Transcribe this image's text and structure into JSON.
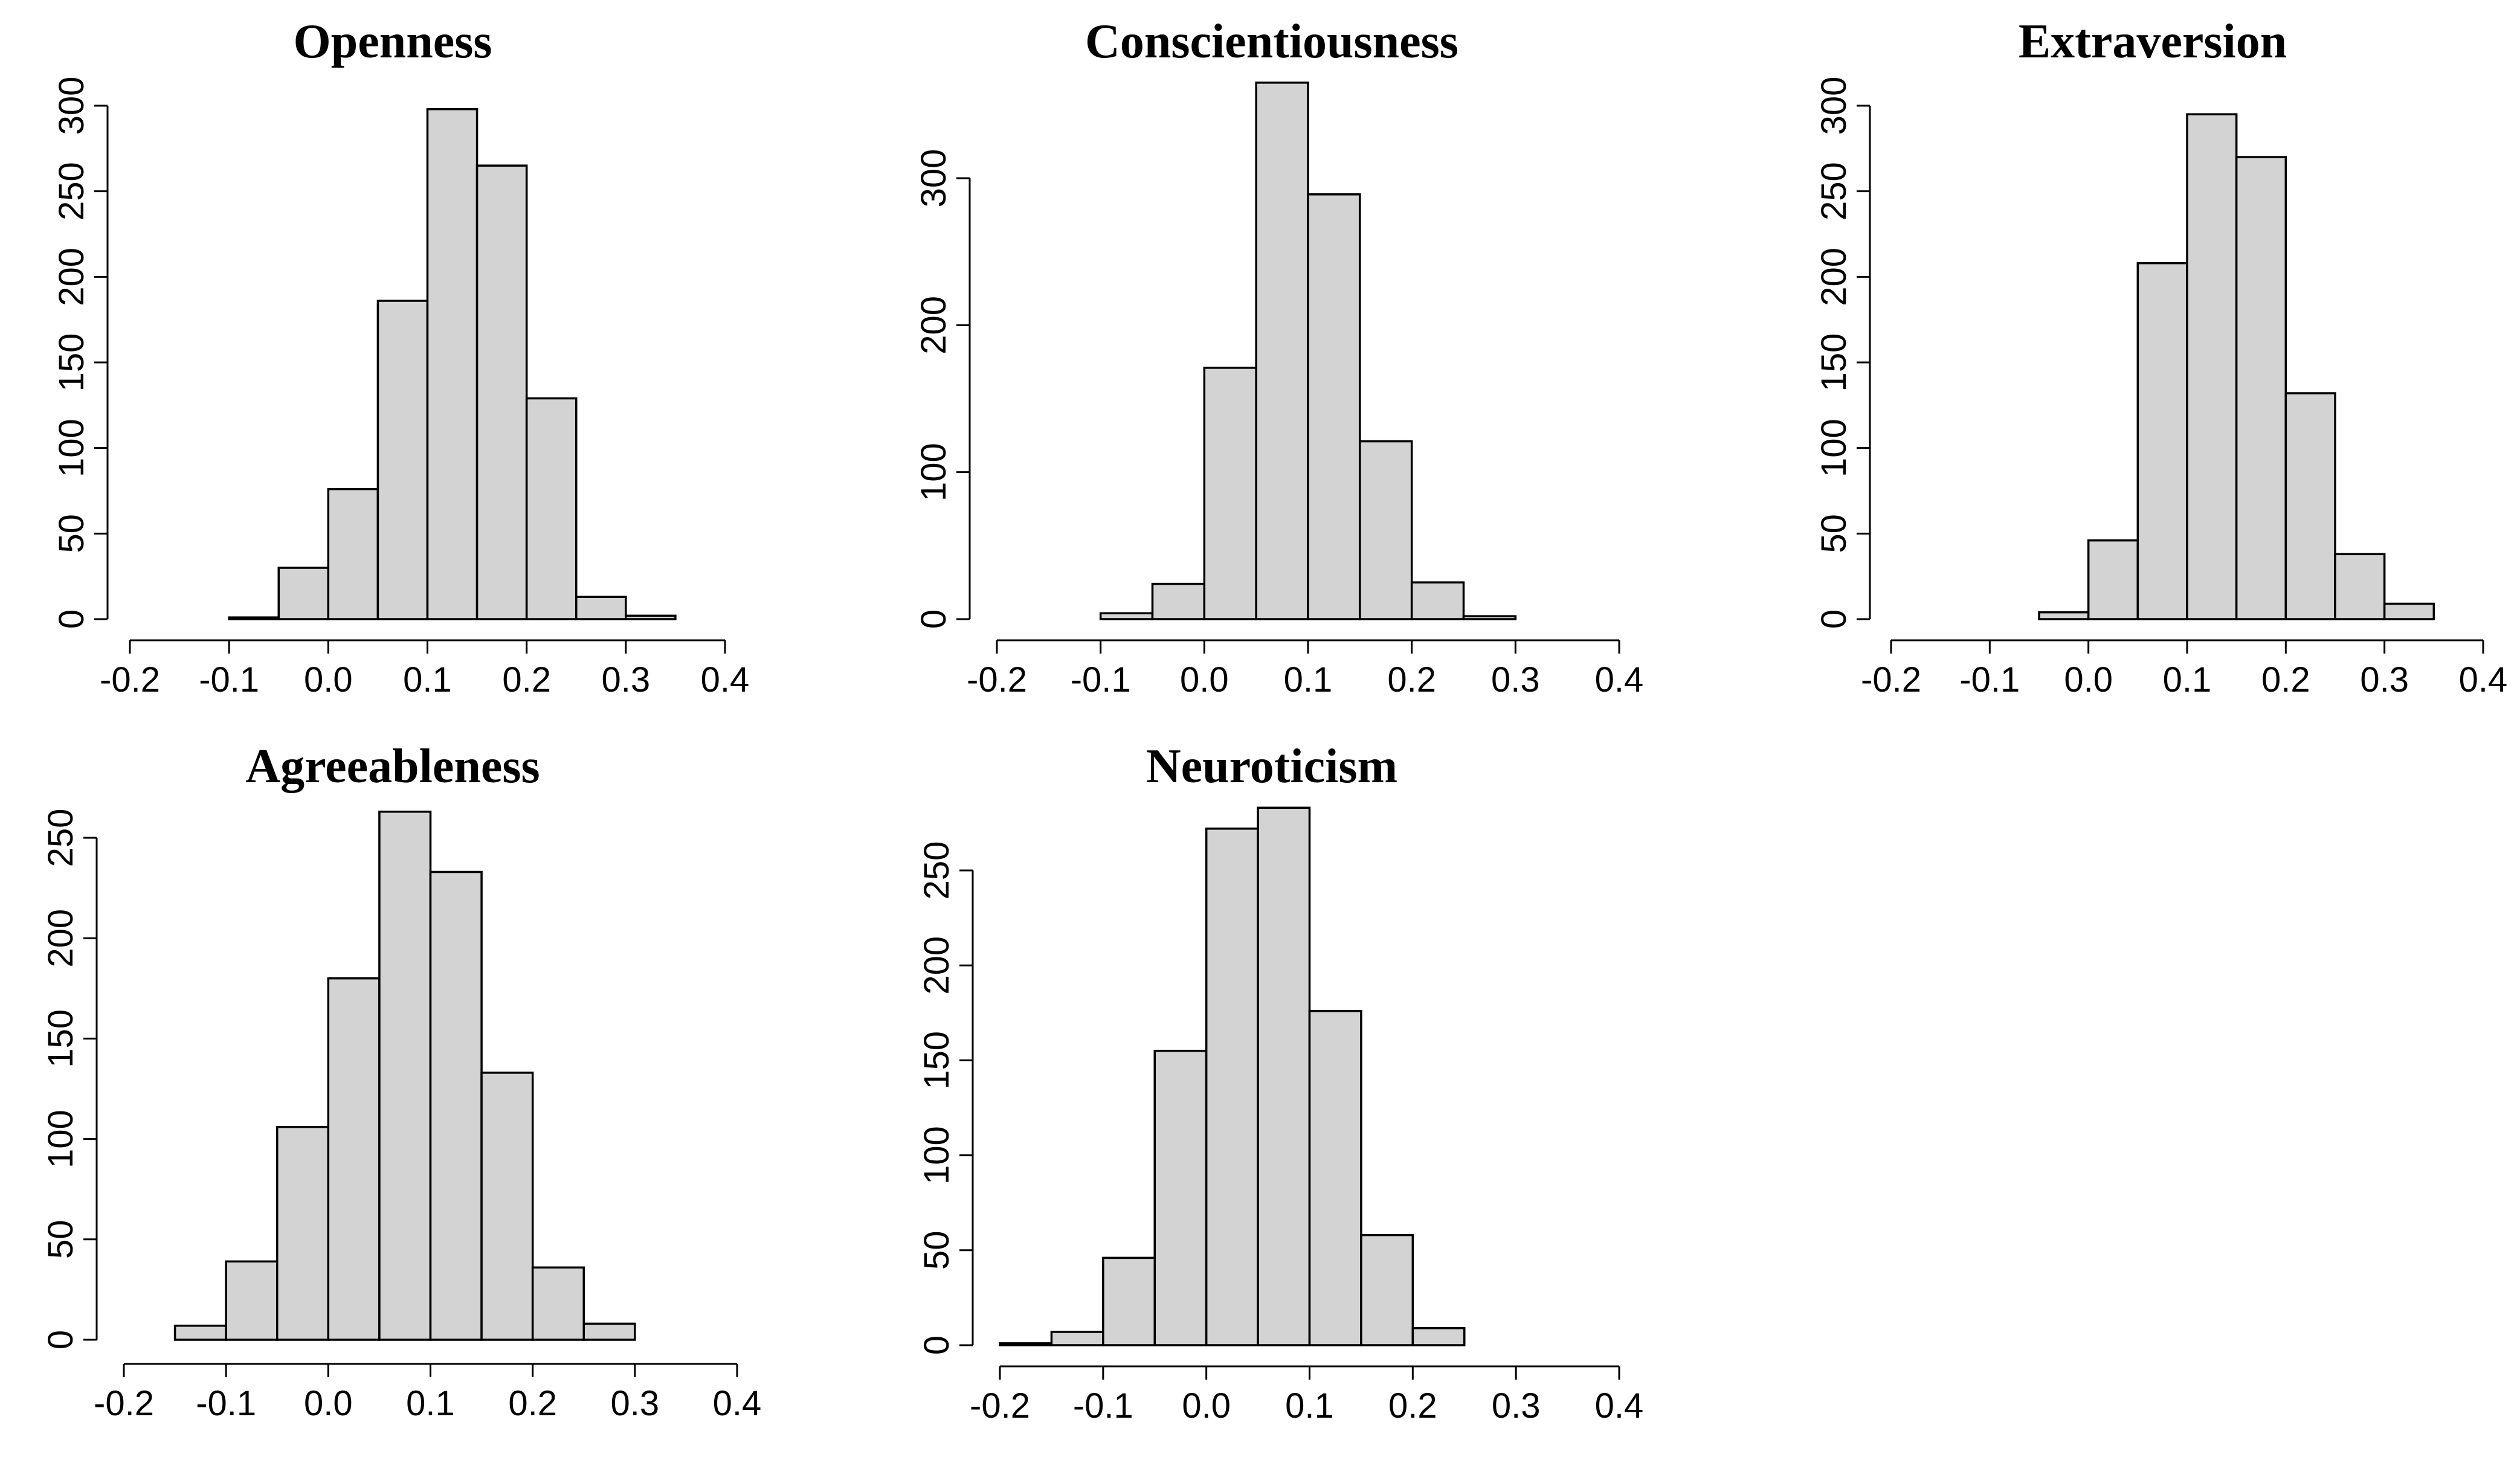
{
  "chart_data": [
    {
      "type": "bar",
      "title": "Openness",
      "bin_start": -0.1,
      "bin_width": 0.05,
      "values": [
        1,
        30,
        76,
        186,
        298,
        265,
        129,
        13,
        2
      ],
      "xlim": [
        -0.2,
        0.4
      ],
      "ylim": [
        0,
        300
      ],
      "x_ticks": [
        -0.2,
        -0.1,
        0.0,
        0.1,
        0.2,
        0.3,
        0.4
      ],
      "x_tick_labels": [
        "-0.2",
        "-0.1",
        "0.0",
        "0.1",
        "0.2",
        "0.3",
        "0.4"
      ],
      "y_ticks": [
        0,
        50,
        100,
        150,
        200,
        250,
        300
      ],
      "y_tick_labels": [
        "0",
        "50",
        "100",
        "150",
        "200",
        "250",
        "300"
      ],
      "xlabel": "",
      "ylabel": ""
    },
    {
      "type": "bar",
      "title": "Conscientiousness",
      "bin_start": -0.2,
      "bin_width": 0.05,
      "values": [
        0,
        0,
        4,
        24,
        171,
        365,
        289,
        121,
        25,
        2
      ],
      "xlim": [
        -0.2,
        0.4
      ],
      "ylim": [
        0,
        300
      ],
      "x_ticks": [
        -0.2,
        -0.1,
        0.0,
        0.1,
        0.2,
        0.3,
        0.4
      ],
      "x_tick_labels": [
        "-0.2",
        "-0.1",
        "0.0",
        "0.1",
        "0.2",
        "0.3",
        "0.4"
      ],
      "y_ticks": [
        0,
        100,
        200,
        300
      ],
      "y_tick_labels": [
        "0",
        "100",
        "200",
        "300"
      ],
      "xlabel": "",
      "ylabel": ""
    },
    {
      "type": "bar",
      "title": "Extraversion",
      "bin_start": -0.05,
      "bin_width": 0.05,
      "values": [
        4,
        46,
        208,
        295,
        270,
        132,
        38,
        9
      ],
      "xlim": [
        -0.2,
        0.4
      ],
      "ylim": [
        0,
        300
      ],
      "x_ticks": [
        -0.2,
        -0.1,
        0.0,
        0.1,
        0.2,
        0.3,
        0.4
      ],
      "x_tick_labels": [
        "-0.2",
        "-0.1",
        "0.0",
        "0.1",
        "0.2",
        "0.3",
        "0.4"
      ],
      "y_ticks": [
        0,
        50,
        100,
        150,
        200,
        250,
        300
      ],
      "y_tick_labels": [
        "0",
        "50",
        "100",
        "150",
        "200",
        "250",
        "300"
      ],
      "xlabel": "",
      "ylabel": ""
    },
    {
      "type": "bar",
      "title": "Agreeableness",
      "bin_start": -0.15,
      "bin_width": 0.05,
      "values": [
        7,
        39,
        106,
        180,
        263,
        233,
        133,
        36,
        8
      ],
      "xlim": [
        -0.2,
        0.4
      ],
      "ylim": [
        0,
        250
      ],
      "x_ticks": [
        -0.2,
        -0.1,
        0.0,
        0.1,
        0.2,
        0.3,
        0.4
      ],
      "x_tick_labels": [
        "-0.2",
        "-0.1",
        "0.0",
        "0.1",
        "0.2",
        "0.3",
        "0.4"
      ],
      "y_ticks": [
        0,
        50,
        100,
        150,
        200,
        250
      ],
      "y_tick_labels": [
        "0",
        "50",
        "100",
        "150",
        "200",
        "250"
      ],
      "xlabel": "",
      "ylabel": ""
    },
    {
      "type": "bar",
      "title": "Neuroticism",
      "bin_start": -0.2,
      "bin_width": 0.05,
      "values": [
        1,
        7,
        46,
        155,
        272,
        283,
        176,
        58,
        9
      ],
      "xlim": [
        -0.2,
        0.4
      ],
      "ylim": [
        0,
        250
      ],
      "x_ticks": [
        -0.2,
        -0.1,
        0.0,
        0.1,
        0.2,
        0.3,
        0.4
      ],
      "x_tick_labels": [
        "-0.2",
        "-0.1",
        "0.0",
        "0.1",
        "0.2",
        "0.3",
        "0.4"
      ],
      "y_ticks": [
        0,
        50,
        100,
        150,
        200,
        250
      ],
      "y_tick_labels": [
        "0",
        "50",
        "100",
        "150",
        "200",
        "250"
      ],
      "xlabel": "",
      "ylabel": ""
    }
  ]
}
